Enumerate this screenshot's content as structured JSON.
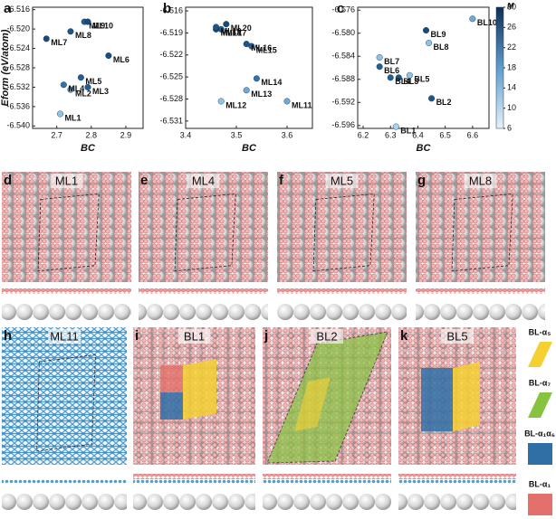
{
  "chart_data": [
    {
      "type": "scatter",
      "letter": "a",
      "xlabel": "BC",
      "ylabel": "Eform (eV/atom)",
      "xlim": [
        2.63,
        2.95
      ],
      "ylim": [
        -6.5405,
        -6.5155
      ],
      "xticks": [
        2.7,
        2.8,
        2.9
      ],
      "yticks": [
        -6.516,
        {
          "value": -6.52,
          "label": "-6.520"
        },
        -6.524,
        -6.528,
        -6.532,
        -6.536,
        {
          "value": -6.54,
          "label": "-6.540"
        }
      ],
      "labels": [
        "ML1",
        "ML2",
        "ML3",
        "ML4",
        "ML5",
        "ML6",
        "ML7",
        "ML8",
        "ML9",
        "ML10"
      ],
      "x": [
        2.71,
        2.74,
        2.79,
        2.72,
        2.77,
        2.85,
        2.67,
        2.74,
        2.78,
        2.79
      ],
      "y": [
        -6.5375,
        -6.5325,
        -6.532,
        -6.5315,
        -6.53,
        -6.5255,
        -6.522,
        -6.5205,
        -6.5185,
        -6.5185
      ],
      "colors": [
        "#8fc4e6",
        "#5d9dd0",
        "#1d5f96",
        "#2f73ab",
        "#245f93",
        "#1a4e80",
        "#1a4a7a",
        "#1d5586",
        "#215d91",
        "#1a4a7a"
      ]
    },
    {
      "type": "scatter",
      "letter": "b",
      "xlabel": "BC",
      "xlim": [
        3.4,
        3.65
      ],
      "ylim": [
        -6.532,
        -6.5155
      ],
      "xticks": [
        3.4,
        3.5,
        3.6
      ],
      "yticks": [
        -6.516,
        -6.519,
        -6.522,
        -6.525,
        -6.528,
        -6.531
      ],
      "labels": [
        "ML11",
        "ML12",
        "ML13",
        "ML14",
        "ML15",
        "ML16",
        "ML17",
        "ML18",
        "ML19",
        "ML20"
      ],
      "x": [
        3.6,
        3.47,
        3.52,
        3.54,
        3.53,
        3.52,
        3.47,
        3.46,
        3.46,
        3.48
      ],
      "y": [
        -6.5283,
        -6.5283,
        -6.5268,
        -6.5252,
        -6.5208,
        -6.5205,
        -6.5185,
        -6.5185,
        -6.5182,
        -6.5178
      ],
      "colors": [
        "#6fa9d8",
        "#8fc4e6",
        "#6fa9d8",
        "#2f73ab",
        "#245f93",
        "#1d5586",
        "#215d91",
        "#1a4a7a",
        "#1d5586",
        "#1a4a7a"
      ]
    },
    {
      "type": "scatter",
      "letter": "c",
      "xlabel": "BC",
      "xlim": [
        6.18,
        6.66
      ],
      "ylim": [
        -6.5965,
        -6.5755
      ],
      "xticks": [
        6.2,
        6.3,
        6.4,
        6.5,
        6.6
      ],
      "yticks": [
        -6.576,
        {
          "value": -6.58,
          "label": "-6.580"
        },
        -6.584,
        -6.588,
        -6.592,
        -6.596
      ],
      "labels": [
        "BL1",
        "BL2",
        "BL3",
        "BL4",
        "BL5",
        "BL6",
        "BL7",
        "BL8",
        "BL9",
        "BL10"
      ],
      "x": [
        6.32,
        6.45,
        6.33,
        6.3,
        6.37,
        6.26,
        6.26,
        6.44,
        6.43,
        6.6
      ],
      "y": [
        -6.5962,
        -6.5913,
        -6.5877,
        -6.5877,
        -6.5873,
        -6.5858,
        -6.5842,
        -6.5817,
        -6.5795,
        -6.5775
      ],
      "colors": [
        "#a8d4ee",
        "#1d5586",
        "#1d5586",
        "#245f93",
        "#8fc4e6",
        "#245f93",
        "#8fc4e6",
        "#8fc4e6",
        "#1a4a7a",
        "#6fa9d8"
      ],
      "colorbar": {
        "label": "M",
        "lim": [
          6,
          30
        ],
        "ticks": [
          6,
          10,
          14,
          18,
          22,
          26,
          30
        ]
      }
    }
  ],
  "structures": [
    {
      "letter": "d",
      "name": "ML1"
    },
    {
      "letter": "e",
      "name": "ML4"
    },
    {
      "letter": "f",
      "name": "ML5"
    },
    {
      "letter": "g",
      "name": "ML8"
    },
    {
      "letter": "h",
      "name": "ML11"
    },
    {
      "letter": "i",
      "name": "BL1"
    },
    {
      "letter": "j",
      "name": "BL2"
    },
    {
      "letter": "k",
      "name": "BL5"
    }
  ],
  "legend": [
    {
      "label": "BL-α₅",
      "color": "#f5d033"
    },
    {
      "label": "BL-α₇",
      "color": "#86c440"
    },
    {
      "label": "BL-α₁α₆",
      "color": "#2f6fa6"
    },
    {
      "label": "BL-α₁",
      "color": "#e4706c"
    }
  ]
}
